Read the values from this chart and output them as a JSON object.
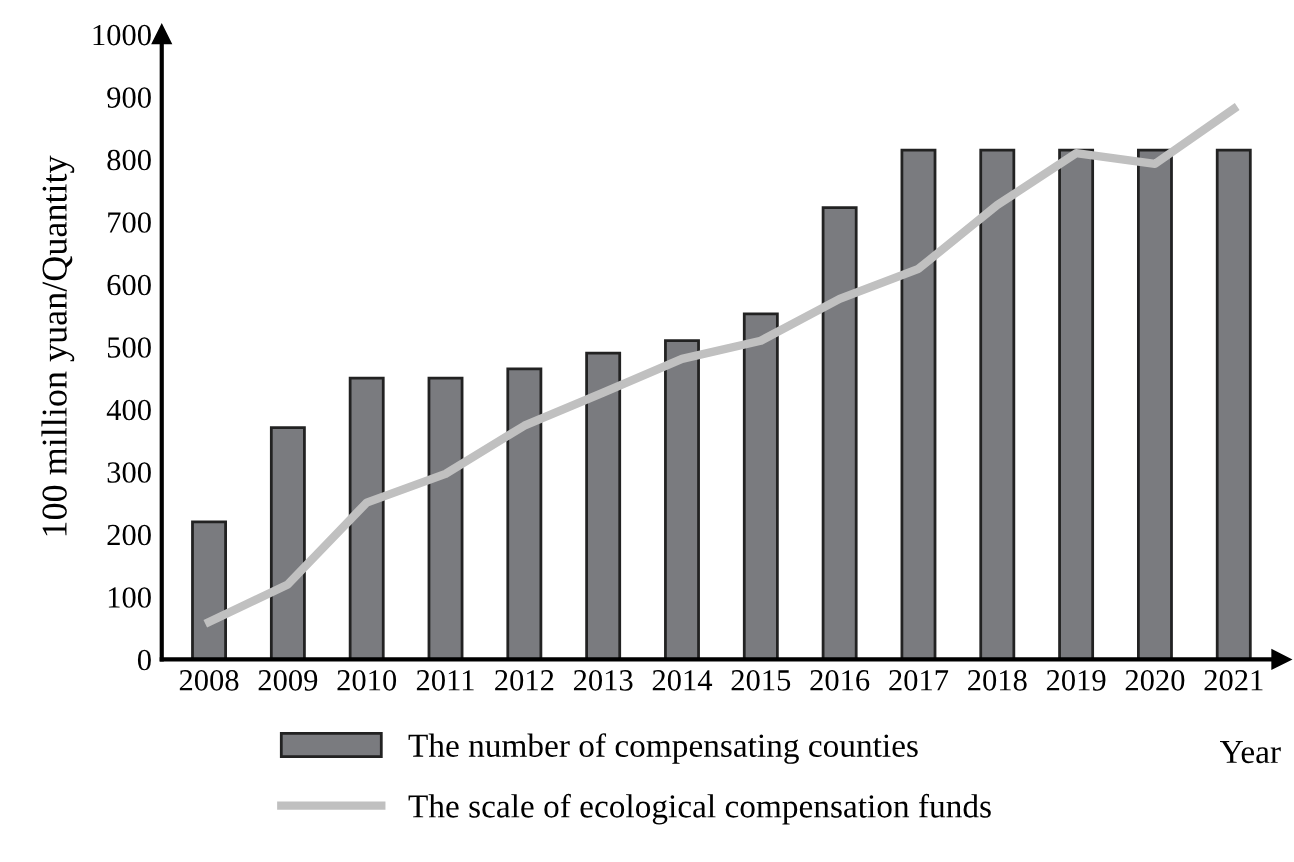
{
  "chart_data": {
    "type": "bar",
    "xlabel": "Year",
    "ylabel": "100 million yuan/Quantity",
    "categories": [
      "2008",
      "2009",
      "2010",
      "2011",
      "2012",
      "2013",
      "2014",
      "2015",
      "2016",
      "2017",
      "2018",
      "2019",
      "2020",
      "2021"
    ],
    "series": [
      {
        "name": "The number of compensating counties",
        "color": "#7a7b7f",
        "values": [
          220,
          371,
          450,
          450,
          465,
          490,
          510,
          553,
          723,
          815,
          815,
          815,
          815,
          815
        ]
      },
      {
        "name": "The scale of ecological compensation funds",
        "type": "line",
        "color": "#c0c0c0",
        "values": [
          60,
          120,
          251,
          297,
          374,
          427,
          481,
          510,
          577,
          625,
          727,
          810,
          793,
          881
        ]
      }
    ],
    "ylim": [
      0,
      1000
    ],
    "yticks": [
      0,
      100,
      200,
      300,
      400,
      500,
      600,
      700,
      800,
      900,
      1000
    ],
    "grid": false,
    "legend": "bottom"
  }
}
